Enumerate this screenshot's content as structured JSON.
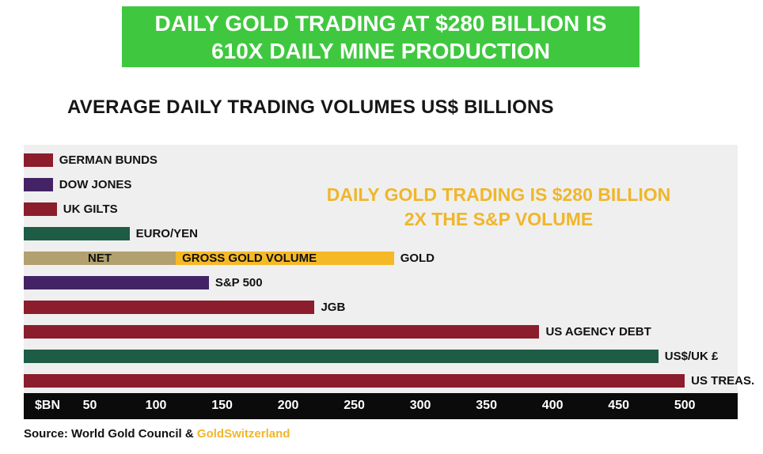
{
  "banner": {
    "line1": "DAILY GOLD TRADING AT $280 BILLION IS",
    "line2": "610X DAILY MINE PRODUCTION",
    "bg_color": "#3fc83f",
    "text_color": "#ffffff"
  },
  "chart_title": "AVERAGE DAILY TRADING VOLUMES US$ BILLIONS",
  "annotation": {
    "line1": "DAILY GOLD TRADING IS $280 BILLION",
    "line2": "2X THE S&P VOLUME",
    "color": "#f0b629"
  },
  "chart_data": {
    "type": "bar",
    "orientation": "horizontal",
    "title": "AVERAGE DAILY TRADING VOLUMES US$ BILLIONS",
    "xlabel": "$BN",
    "ylabel": "",
    "xlim": [
      0,
      540
    ],
    "ticks": [
      50,
      100,
      150,
      200,
      250,
      300,
      350,
      400,
      450,
      500
    ],
    "grid": false,
    "bars": [
      {
        "label": "GERMAN BUNDS",
        "value": 22,
        "color": "#8b1d2c"
      },
      {
        "label": "DOW JONES",
        "value": 22,
        "color": "#432365"
      },
      {
        "label": "UK GILTS",
        "value": 25,
        "color": "#8b1d2c"
      },
      {
        "label": "EURO/YEN",
        "value": 80,
        "color": "#1d5c45"
      },
      {
        "label": "GOLD",
        "value": 280,
        "color": "#f6b926",
        "segments": [
          {
            "label": "NET",
            "value": 115,
            "color": "#b2a16f",
            "align": "center"
          },
          {
            "label": "GROSS GOLD VOLUME",
            "value": 165,
            "color": "#f6b926",
            "align": "left"
          }
        ]
      },
      {
        "label": "S&P 500",
        "value": 140,
        "color": "#432365"
      },
      {
        "label": "JGB",
        "value": 220,
        "color": "#8b1d2c"
      },
      {
        "label": "US AGENCY DEBT",
        "value": 390,
        "color": "#8b1d2c"
      },
      {
        "label": "US$/UK £",
        "value": 480,
        "color": "#1d5c45"
      },
      {
        "label": "US TREAS.",
        "value": 500,
        "color": "#8b1d2c"
      }
    ]
  },
  "source": {
    "prefix": "Source: World Gold Council & ",
    "brand": "GoldSwitzerland",
    "brand_color": "#f0b629"
  }
}
